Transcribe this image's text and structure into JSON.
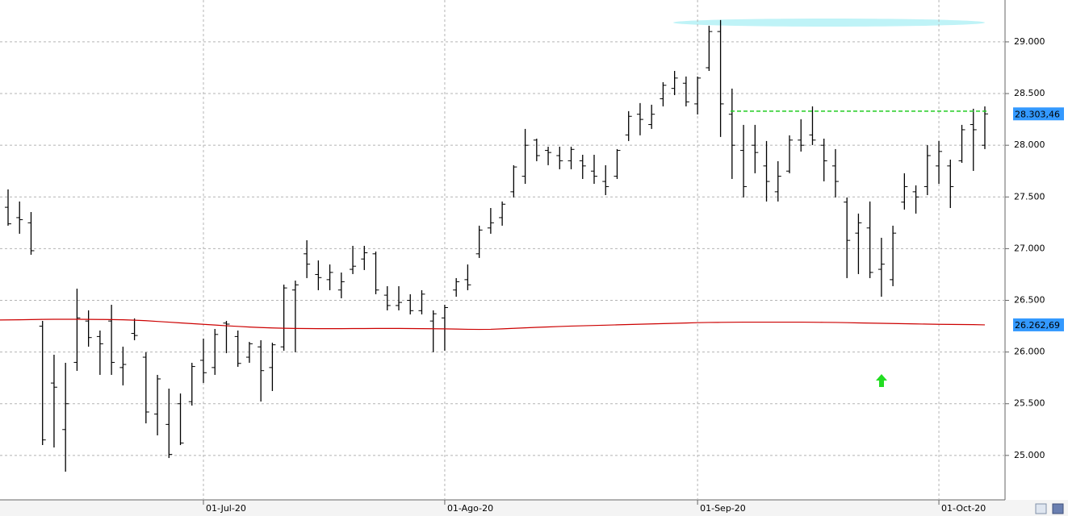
{
  "chart_data": {
    "type": "ohlc",
    "color": "#000000",
    "categories": [
      null,
      null,
      null,
      null,
      null,
      null,
      null,
      null,
      null,
      null,
      null,
      null,
      null,
      null,
      null,
      null,
      null,
      "01-Jul-20",
      null,
      null,
      null,
      null,
      null,
      null,
      null,
      null,
      null,
      null,
      null,
      null,
      null,
      null,
      null,
      null,
      null,
      null,
      null,
      null,
      "01-Ago-20",
      null,
      null,
      null,
      null,
      null,
      null,
      null,
      null,
      null,
      null,
      null,
      null,
      null,
      null,
      null,
      null,
      null,
      null,
      null,
      null,
      null,
      "01-Sep-20",
      null,
      null,
      null,
      null,
      null,
      null,
      null,
      null,
      null,
      null,
      null,
      null,
      null,
      null,
      null,
      null,
      null,
      null,
      null,
      null,
      "01-Oct-20",
      null,
      null,
      null,
      null
    ],
    "open": [
      27400,
      27300,
      27250,
      26250,
      25700,
      25250,
      25900,
      26300,
      26150,
      26300,
      25850,
      26180,
      25950,
      25400,
      25300,
      25500,
      25520,
      25920,
      25850,
      26280,
      26150,
      25950,
      26050,
      25850,
      26050,
      26600,
      26950,
      26750,
      26700,
      26600,
      26800,
      26900,
      26950,
      26550,
      26450,
      26500,
      26400,
      26300,
      26330,
      26600,
      26700,
      26950,
      27200,
      27300,
      27550,
      27700,
      28050,
      27950,
      27900,
      27850,
      27850,
      27750,
      27650,
      27700,
      28100,
      28300,
      28200,
      28450,
      28550,
      28600,
      28400,
      28750,
      29100,
      28300,
      27950,
      28000,
      27800,
      27550,
      27750,
      28050,
      28100,
      28000,
      27800,
      27450,
      27150,
      27200,
      26800,
      26700,
      27450,
      27550,
      27600,
      27800,
      27800,
      27850,
      28200,
      28000
    ],
    "high": [
      27573,
      27456,
      27354,
      26301,
      25974,
      25896,
      26613,
      26403,
      26208,
      26457,
      26052,
      26325,
      25998,
      25779,
      25646,
      25599,
      25896,
      26130,
      26223,
      26301,
      26208,
      26098,
      26114,
      26090,
      26652,
      26691,
      27081,
      26886,
      26847,
      26769,
      27027,
      27027,
      26972,
      26637,
      26637,
      26559,
      26598,
      26403,
      26457,
      26715,
      26847,
      27222,
      27393,
      27456,
      27807,
      28158,
      28064,
      27986,
      27986,
      27986,
      27908,
      27908,
      27807,
      27963,
      28330,
      28408,
      28392,
      28610,
      28719,
      28665,
      28665,
      29156,
      29211,
      28548,
      28197,
      28197,
      28041,
      27846,
      28096,
      28252,
      28376,
      28064,
      27963,
      27495,
      27339,
      27456,
      27105,
      27222,
      27729,
      27612,
      28002,
      28041,
      27861,
      28197,
      28353,
      28376
    ],
    "low": [
      27222,
      27144,
      26941,
      25100,
      25077,
      24843,
      25818,
      26052,
      25779,
      25779,
      25677,
      26114,
      25310,
      25194,
      24975,
      25100,
      25482,
      25701,
      25779,
      25989,
      25857,
      25896,
      25521,
      25623,
      26013,
      25998,
      26715,
      26598,
      26598,
      26520,
      26754,
      26793,
      26559,
      26403,
      26403,
      26364,
      26364,
      25998,
      26013,
      26535,
      26598,
      26910,
      27144,
      27222,
      27495,
      27627,
      27846,
      27807,
      27768,
      27768,
      27674,
      27627,
      27518,
      27674,
      28041,
      28096,
      28158,
      28376,
      28485,
      28376,
      28298,
      28719,
      28080,
      27674,
      27495,
      27729,
      27456,
      27456,
      27729,
      27939,
      28002,
      27651,
      27495,
      26715,
      26754,
      26715,
      26535,
      26637,
      27378,
      27339,
      27518,
      27627,
      27393,
      27830,
      27752,
      27963
    ],
    "close": [
      27240,
      27280,
      26980,
      25150,
      25660,
      25500,
      26330,
      26140,
      26080,
      25900,
      25880,
      26160,
      25420,
      25740,
      25010,
      25120,
      25860,
      25800,
      26170,
      26270,
      25890,
      26080,
      25820,
      26070,
      26620,
      26650,
      26850,
      26720,
      26770,
      26680,
      26830,
      26960,
      26600,
      26450,
      26480,
      26400,
      26560,
      26370,
      26430,
      26680,
      26650,
      27180,
      27250,
      27430,
      27790,
      28000,
      27900,
      27930,
      27850,
      27960,
      27800,
      27700,
      27600,
      27950,
      28280,
      28250,
      28300,
      28580,
      28650,
      28420,
      28650,
      29100,
      28400,
      28000,
      27600,
      27930,
      27650,
      27700,
      28050,
      28000,
      28050,
      27850,
      27650,
      27080,
      27250,
      26770,
      26850,
      27150,
      27600,
      27500,
      27900,
      27940,
      27600,
      28150,
      28150,
      28303.46
    ],
    "moving_average": {
      "color": "#cc0000",
      "values": [
        26310,
        26312,
        26314,
        26316,
        26317,
        26317,
        26317,
        26316,
        26315,
        26314,
        26312,
        26308,
        26303,
        26296,
        26289,
        26282,
        26275,
        26268,
        26261,
        26254,
        26248,
        26242,
        26237,
        26233,
        26230,
        26228,
        26227,
        26226,
        26226,
        26226,
        26227,
        26227,
        26228,
        26228,
        26228,
        26227,
        26226,
        26225,
        26224,
        26222,
        26220,
        26219,
        26220,
        26224,
        26229,
        26234,
        26239,
        26243,
        26247,
        26251,
        26254,
        26257,
        26260,
        26263,
        26266,
        26269,
        26272,
        26275,
        26278,
        26281,
        26284,
        26286,
        26287,
        26288,
        26289,
        26289,
        26289,
        26289,
        26289,
        26289,
        26288,
        26287,
        26286,
        26284,
        26282,
        26280,
        26278,
        26276,
        26274,
        26272,
        26270,
        26268,
        26267,
        26266,
        26265,
        26262.69
      ]
    },
    "horizontal_line": {
      "value": 28330,
      "color": "#22cc22"
    },
    "price_tags": [
      {
        "value": 28303.46,
        "label": "28.303,46",
        "color": "#3399ff"
      },
      {
        "value": 26262.69,
        "label": "26.262,69",
        "color": "#3399ff"
      }
    ],
    "ylim": [
      24570,
      29405
    ],
    "yticks": [
      {
        "value": 25000,
        "label": "25.000"
      },
      {
        "value": 25500,
        "label": "25.500"
      },
      {
        "value": 26000,
        "label": "26.000"
      },
      {
        "value": 26500,
        "label": "26.500"
      },
      {
        "value": 27000,
        "label": "27.000"
      },
      {
        "value": 27500,
        "label": "27.500"
      },
      {
        "value": 28000,
        "label": "28.000"
      },
      {
        "value": 28500,
        "label": "28.500"
      },
      {
        "value": 29000,
        "label": "29.000"
      }
    ],
    "grid": true
  }
}
